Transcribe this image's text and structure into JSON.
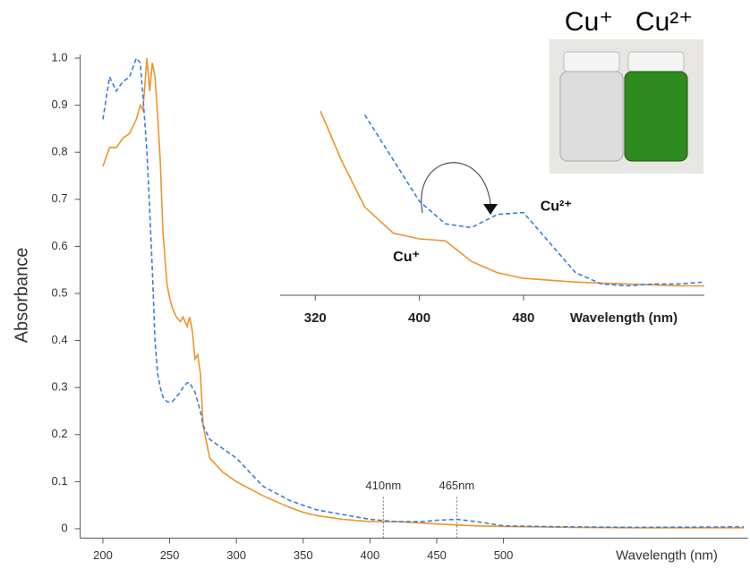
{
  "chart_data": [
    {
      "type": "line",
      "y_label": "Absorbance",
      "x_label": "Wavelength (nm)",
      "xlim": [
        183,
        683
      ],
      "ylim": [
        -0.02,
        1.0
      ],
      "xticks": [
        200,
        250,
        300,
        350,
        400,
        450,
        500
      ],
      "yticks": [
        0,
        0.1,
        0.2,
        0.3,
        0.4,
        0.5,
        0.6,
        0.7,
        0.8,
        0.9,
        {
          "value": 1,
          "label": "1.0"
        }
      ],
      "x": [
        200,
        205,
        210,
        215,
        220,
        225,
        228,
        230,
        233,
        235,
        237,
        239,
        241,
        243,
        245,
        248,
        250,
        252,
        255,
        258,
        260,
        263,
        265,
        267,
        269,
        271,
        273,
        275,
        280,
        290,
        300,
        310,
        320,
        340,
        350,
        360,
        380,
        400,
        420,
        440,
        450,
        465,
        480,
        500,
        550,
        600,
        680
      ],
      "series": [
        {
          "color": "#f0932b",
          "dash": false,
          "values": [
            0.77,
            0.81,
            0.81,
            0.83,
            0.84,
            0.87,
            0.9,
            0.89,
            1.0,
            0.93,
            0.99,
            0.96,
            0.88,
            0.78,
            0.63,
            0.52,
            0.49,
            0.47,
            0.45,
            0.44,
            0.45,
            0.43,
            0.45,
            0.42,
            0.36,
            0.37,
            0.33,
            0.22,
            0.15,
            0.12,
            0.1,
            0.085,
            0.07,
            0.045,
            0.035,
            0.028,
            0.02,
            0.015,
            0.015,
            0.012,
            0.01,
            0.008,
            0.006,
            0.005,
            0.003,
            0.002,
            0.002
          ]
        },
        {
          "color": "#3b7ddd",
          "dash": true,
          "values": [
            0.87,
            0.96,
            0.93,
            0.95,
            0.96,
            1.0,
            0.99,
            0.92,
            0.8,
            0.68,
            0.55,
            0.4,
            0.33,
            0.3,
            0.28,
            0.27,
            0.27,
            0.27,
            0.28,
            0.29,
            0.3,
            0.31,
            0.31,
            0.3,
            0.29,
            0.27,
            0.25,
            0.22,
            0.19,
            0.17,
            0.15,
            0.12,
            0.09,
            0.06,
            0.05,
            0.04,
            0.03,
            0.02,
            0.015,
            0.015,
            0.018,
            0.02,
            0.015,
            0.006,
            0.004,
            0.003,
            0.004
          ]
        }
      ],
      "annotations": [
        {
          "text": "410nm",
          "x": 410,
          "y": 0.09
        },
        {
          "text": "465nm",
          "x": 465,
          "y": 0.09
        }
      ]
    },
    {
      "type": "line",
      "x_label": "Wavelength (nm)",
      "xlim": [
        293,
        619
      ],
      "ylim": [
        0,
        1
      ],
      "xticks": [
        320,
        400,
        480
      ],
      "x": [
        324,
        340,
        358,
        380,
        400,
        420,
        440,
        460,
        480,
        500,
        520,
        540,
        560,
        580,
        600,
        619
      ],
      "series": [
        {
          "color": "#f0932b",
          "dash": false,
          "values": [
            0.98,
            0.72,
            0.47,
            0.33,
            0.3,
            0.29,
            0.18,
            0.12,
            0.09,
            0.08,
            0.07,
            0.065,
            0.06,
            0.055,
            0.05,
            0.05
          ]
        },
        {
          "color": "#3b7ddd",
          "dash": true,
          "values": [
            null,
            null,
            0.96,
            0.72,
            0.5,
            0.38,
            0.36,
            0.43,
            0.44,
            0.28,
            0.12,
            0.06,
            0.05,
            0.06,
            0.06,
            0.07
          ]
        }
      ],
      "annotations": [
        {
          "text": "Cu⁺",
          "x": 390,
          "y": 0.2
        },
        {
          "text": "Cu²⁺",
          "x": 505,
          "y": 0.47
        }
      ]
    }
  ],
  "photo": {
    "labels": [
      "Cu⁺",
      "Cu²⁺"
    ]
  }
}
